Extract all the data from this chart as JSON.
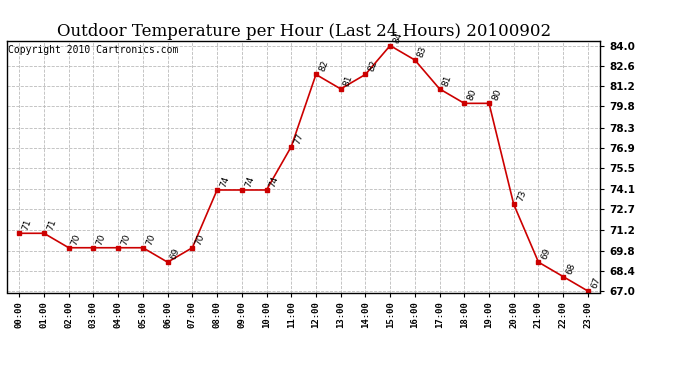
{
  "title": "Outdoor Temperature per Hour (Last 24 Hours) 20100902",
  "copyright": "Copyright 2010 Cartronics.com",
  "hours": [
    "00:00",
    "01:00",
    "02:00",
    "03:00",
    "04:00",
    "05:00",
    "06:00",
    "07:00",
    "08:00",
    "09:00",
    "10:00",
    "11:00",
    "12:00",
    "13:00",
    "14:00",
    "15:00",
    "16:00",
    "17:00",
    "18:00",
    "19:00",
    "20:00",
    "21:00",
    "22:00",
    "23:00"
  ],
  "temps": [
    71,
    71,
    70,
    70,
    70,
    70,
    69,
    70,
    74,
    74,
    74,
    77,
    82,
    81,
    82,
    84,
    83,
    81,
    80,
    80,
    73,
    69,
    68,
    67
  ],
  "line_color": "#cc0000",
  "marker_color": "#cc0000",
  "bg_color": "#ffffff",
  "plot_bg": "#ffffff",
  "grid_color": "#bbbbbb",
  "yticks": [
    67.0,
    68.4,
    69.8,
    71.2,
    72.7,
    74.1,
    75.5,
    76.9,
    78.3,
    79.8,
    81.2,
    82.6,
    84.0
  ],
  "ylim_min": 67.0,
  "ylim_max": 84.0,
  "title_fontsize": 12,
  "annotation_fontsize": 6.5,
  "copyright_fontsize": 7
}
